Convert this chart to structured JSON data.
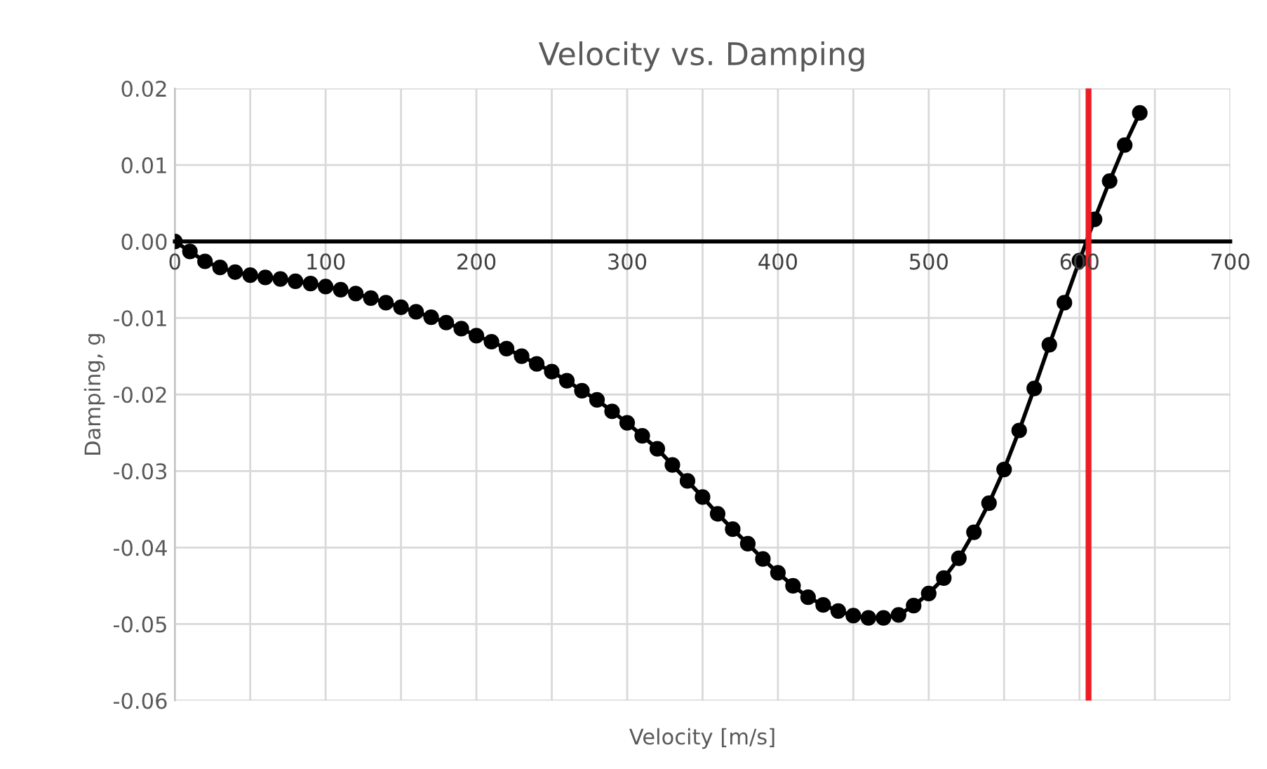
{
  "chart_data": {
    "type": "line",
    "title": "Velocity vs. Damping",
    "xlabel": "Velocity [m/s]",
    "ylabel": "Damping, g",
    "x": [
      0,
      10,
      20,
      30,
      40,
      50,
      60,
      70,
      80,
      90,
      100,
      110,
      120,
      130,
      140,
      150,
      160,
      170,
      180,
      190,
      200,
      210,
      220,
      230,
      240,
      250,
      260,
      270,
      280,
      290,
      300,
      310,
      320,
      330,
      340,
      350,
      360,
      370,
      380,
      390,
      400,
      410,
      420,
      430,
      440,
      450,
      460,
      470,
      480,
      490,
      500,
      510,
      520,
      530,
      540,
      550,
      560,
      570,
      580,
      590,
      600,
      610,
      620,
      630,
      640
    ],
    "series": [
      {
        "color": "#000000",
        "values": [
          0,
          -0.0013,
          -0.0026,
          -0.0034,
          -0.004,
          -0.0044,
          -0.0047,
          -0.0049,
          -0.0052,
          -0.0055,
          -0.0059,
          -0.0063,
          -0.0068,
          -0.0074,
          -0.008,
          -0.0086,
          -0.0092,
          -0.0099,
          -0.0106,
          -0.0114,
          -0.0123,
          -0.0131,
          -0.014,
          -0.015,
          -0.016,
          -0.017,
          -0.0182,
          -0.0195,
          -0.0207,
          -0.0222,
          -0.0237,
          -0.0254,
          -0.0271,
          -0.0292,
          -0.0313,
          -0.0334,
          -0.0356,
          -0.0376,
          -0.0395,
          -0.0415,
          -0.0433,
          -0.045,
          -0.0465,
          -0.0475,
          -0.0483,
          -0.0489,
          -0.0492,
          -0.0492,
          -0.0488,
          -0.0476,
          -0.046,
          -0.044,
          -0.0414,
          -0.038,
          -0.0342,
          -0.0298,
          -0.0247,
          -0.0192,
          -0.0135,
          -0.008,
          -0.0025,
          0.0029,
          0.0079,
          0.0126,
          0.0168
        ]
      }
    ],
    "xlim": [
      0,
      700
    ],
    "xticks": [
      0,
      {
        "value": 50,
        "label": null
      },
      100,
      {
        "value": 150,
        "label": null
      },
      200,
      {
        "value": 250,
        "label": null
      },
      300,
      {
        "value": 350,
        "label": null
      },
      400,
      {
        "value": 450,
        "label": null
      },
      500,
      {
        "value": 550,
        "label": null
      },
      600,
      {
        "value": 650,
        "label": null
      },
      700
    ],
    "ylim": [
      -0.06,
      0.02
    ],
    "yticks": [
      {
        "value": -0.06,
        "label": "-0.06"
      },
      {
        "value": -0.05,
        "label": "-0.05"
      },
      {
        "value": -0.04,
        "label": "-0.04"
      },
      {
        "value": -0.03,
        "label": "-0.03"
      },
      {
        "value": -0.02,
        "label": "-0.02"
      },
      {
        "value": -0.01,
        "label": "-0.01"
      },
      {
        "value": 0,
        "label": "0.00"
      },
      {
        "value": 0.01,
        "label": "0.01"
      },
      {
        "value": 0.02,
        "label": "0.02"
      }
    ],
    "ref_lines": [
      {
        "axis": "x",
        "value": 606,
        "color": "#ee1c25"
      }
    ],
    "grid": true,
    "marker": "circle",
    "line_style": "solid"
  }
}
